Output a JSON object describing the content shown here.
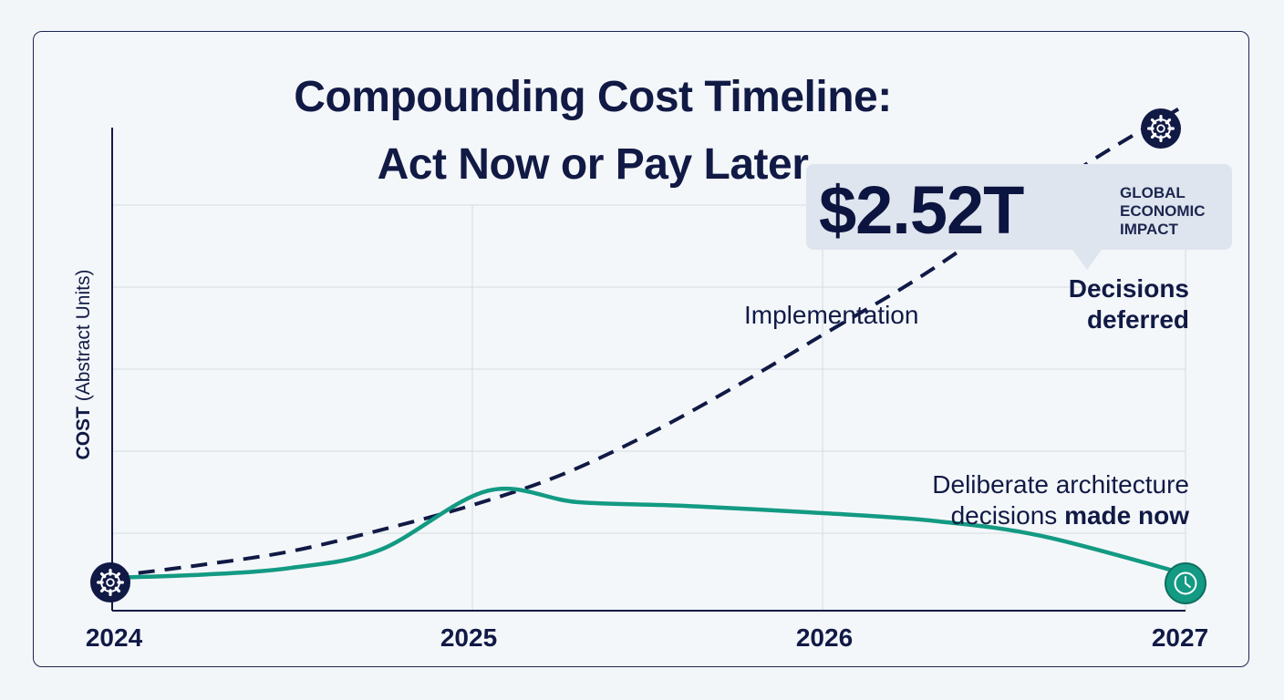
{
  "title_line1": "Compounding Cost Timeline:",
  "title_line2": "Act Now or Pay Later",
  "y_axis_label_bold": "COST",
  "y_axis_label_rest": "(Abstract Units)",
  "callout": {
    "value": "$2.52T",
    "label_line1": "GLOBAL",
    "label_line2": "ECONOMIC",
    "label_line3": "IMPACT"
  },
  "annotations": {
    "implementation": "Implementation",
    "deferred_line1": "Decisions",
    "deferred_line2": "deferred",
    "deliberate_line1": "Deliberate architecture",
    "deliberate_line2a": "decisions ",
    "deliberate_line2b": "made now"
  },
  "icons": {
    "start": "gear-icon",
    "end_deferred": "gear-icon",
    "end_deliberate": "clock-icon"
  },
  "colors": {
    "navy": "#111a45",
    "teal": "#139a83",
    "grid": "#d5dbe3"
  },
  "chart_data": {
    "type": "line",
    "title": "Compounding Cost Timeline: Act Now or Pay Later",
    "xlabel": "",
    "ylabel": "COST (Abstract Units)",
    "categories": [
      "2024",
      "2025",
      "2026",
      "2027"
    ],
    "x": [
      2024,
      2025,
      2026,
      2027
    ],
    "xlim": [
      2024,
      2027
    ],
    "ylim": [
      0,
      6
    ],
    "grid": true,
    "series": [
      {
        "name": "Decisions deferred",
        "style": "dashed",
        "color": "#111a45",
        "points": [
          [
            2024.0,
            0.07
          ],
          [
            2024.25,
            0.22
          ],
          [
            2024.5,
            0.4
          ],
          [
            2024.75,
            0.68
          ],
          [
            2025.0,
            1.0
          ],
          [
            2025.25,
            1.4
          ],
          [
            2025.5,
            1.95
          ],
          [
            2025.75,
            2.6
          ],
          [
            2026.0,
            3.3
          ],
          [
            2026.25,
            4.0
          ],
          [
            2026.5,
            4.8
          ],
          [
            2026.75,
            5.6
          ],
          [
            2027.0,
            6.3
          ]
        ]
      },
      {
        "name": "Deliberate architecture decisions made now",
        "style": "solid",
        "color": "#139a83",
        "points": [
          [
            2024.0,
            0.05
          ],
          [
            2024.25,
            0.09
          ],
          [
            2024.5,
            0.18
          ],
          [
            2024.75,
            0.42
          ],
          [
            2025.05,
            1.2
          ],
          [
            2025.3,
            1.05
          ],
          [
            2025.6,
            1.0
          ],
          [
            2026.0,
            0.9
          ],
          [
            2026.3,
            0.8
          ],
          [
            2026.6,
            0.6
          ],
          [
            2027.0,
            0.1
          ]
        ]
      }
    ]
  }
}
